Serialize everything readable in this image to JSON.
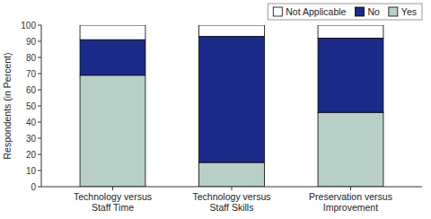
{
  "chart_data": {
    "type": "bar",
    "stacked": true,
    "categories": [
      "Technology versus\nStaff Time",
      "Technology versus\nStaff Skills",
      "Preservation versus\nImprovement"
    ],
    "series": [
      {
        "name": "Yes",
        "color": "#b8cfc8",
        "values": [
          69,
          15,
          46
        ]
      },
      {
        "name": "No",
        "color": "#1a2b8a",
        "values": [
          22,
          78,
          46
        ]
      },
      {
        "name": "Not Applicable",
        "color": "#ffffff",
        "values": [
          9,
          7,
          8
        ]
      }
    ],
    "ylabel": "Respondents (in Percent)",
    "ylim": [
      0,
      100
    ],
    "yticks": [
      0,
      10,
      20,
      30,
      40,
      50,
      60,
      70,
      80,
      90,
      100
    ],
    "grid": false,
    "legend": "upper right"
  }
}
